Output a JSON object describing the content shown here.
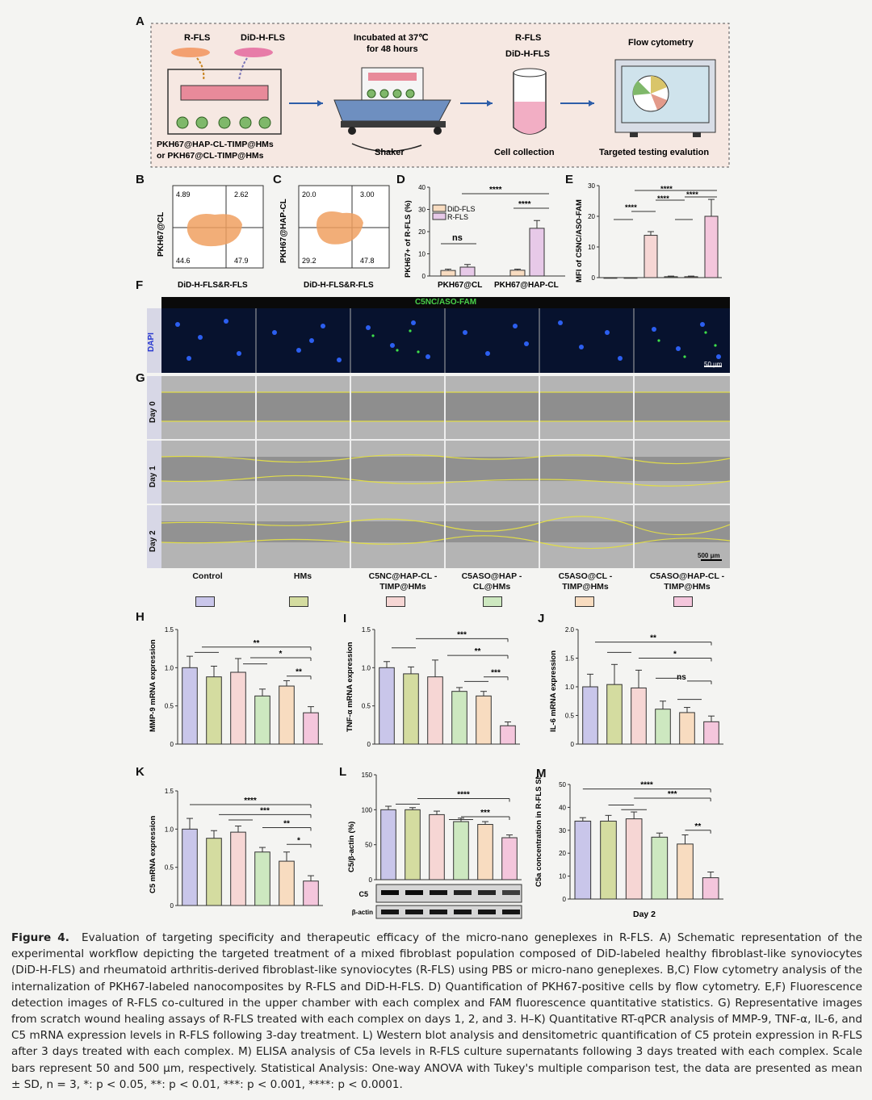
{
  "panels": {
    "A": "A",
    "B": "B",
    "C": "C",
    "D": "D",
    "E": "E",
    "F": "F",
    "G": "G",
    "H": "H",
    "I": "I",
    "J": "J",
    "K": "K",
    "L": "L",
    "M": "M"
  },
  "schematic": {
    "rfls": "R-FLS",
    "did": "DiD-H-FLS",
    "step2": [
      "Incubated at 37℃",
      "for 48 hours"
    ],
    "rfls2": "R-FLS",
    "did2": "DiD-H-FLS",
    "flow": "Flow cytometry",
    "formulation": [
      "PKH67@HAP-CL-TIMP@HMs",
      "or PKH67@CL-TIMP@HMs"
    ],
    "shaker": "Shaker",
    "cell_collection": "Cell collection",
    "targeted": "Targeted testing evalution"
  },
  "flow_plots": [
    {
      "ylabel": "PKH67@CL",
      "xlabel": "DiD-H-FLS&R-FLS",
      "q": [
        "4.89",
        "2.62",
        "44.6",
        "47.9"
      ]
    },
    {
      "ylabel": "PKH67@HAP-CL",
      "xlabel": "DiD-H-FLS&R-FLS",
      "q": [
        "20.0",
        "3.00",
        "29.2",
        "47.8"
      ]
    }
  ],
  "microscopy": {
    "fam": "C5NC/ASO-FAM",
    "dapi": "DAPI",
    "scale1": "50 μm",
    "days": [
      "Day 0",
      "Day 1",
      "Day 2"
    ],
    "scale2": "500 μm"
  },
  "groups": [
    "Control",
    "HMs",
    "C5NC@HAP-CL -TIMP@HMs",
    "C5ASO@HAP -CL@HMs",
    "C5ASO@CL -TIMP@HMs",
    "C5ASO@HAP-CL -TIMP@HMs"
  ],
  "group_colors": [
    "#c9c6ea",
    "#d4dca0",
    "#f6d6d4",
    "#cde8c0",
    "#f8dcc0",
    "#f4c6dc"
  ],
  "western": {
    "c5": "C5",
    "actin": "β-actin"
  },
  "chart_data": [
    {
      "id": "D",
      "type": "bar",
      "ylabel": "PKH67+ of R-FLS (%)",
      "categories": [
        "PKH67@CL",
        "PKH67@HAP-CL"
      ],
      "ylim": [
        0,
        40
      ],
      "yticks": [
        "0",
        "10",
        "20",
        "30",
        "40"
      ],
      "series": [
        {
          "name": "DiD-FLS",
          "color": "#f8dcc0",
          "values": [
            2.5,
            2.6
          ]
        },
        {
          "name": "R-FLS",
          "color": "#e7c9e8",
          "values": [
            4.0,
            21.5
          ]
        }
      ],
      "errors": [
        [
          0.6,
          0.5
        ],
        [
          1.2,
          3.5
        ]
      ],
      "annotations": [
        "ns",
        "****",
        "****"
      ]
    },
    {
      "id": "E",
      "type": "bar",
      "ylabel": "MFI of C5NC/ASO-FAM",
      "ylim": [
        0,
        30
      ],
      "yticks": [
        "0",
        "10",
        "20",
        "30"
      ],
      "values": [
        0,
        0,
        13.8,
        0.3,
        0.3,
        20
      ],
      "errors": [
        0,
        0,
        1.2,
        0.2,
        0.2,
        5.5
      ],
      "annotations": [
        "****",
        "****",
        "****",
        "****"
      ]
    },
    {
      "id": "H",
      "type": "bar",
      "ylabel": "MMP-9 mRNA expression",
      "ylim": [
        0,
        1.5
      ],
      "yticks": [
        "0",
        "0.5",
        "1.0",
        "1.5"
      ],
      "values": [
        1.0,
        0.88,
        0.94,
        0.63,
        0.76,
        0.41
      ],
      "errors": [
        0.15,
        0.14,
        0.18,
        0.09,
        0.07,
        0.08
      ],
      "annotations": [
        "**",
        "*",
        "**"
      ]
    },
    {
      "id": "I",
      "type": "bar",
      "ylabel": "TNF-α mRNA expression",
      "ylim": [
        0,
        1.5
      ],
      "yticks": [
        "0",
        "0.5",
        "1.0",
        "1.5"
      ],
      "values": [
        1.0,
        0.92,
        0.88,
        0.69,
        0.63,
        0.24
      ],
      "errors": [
        0.08,
        0.09,
        0.22,
        0.05,
        0.06,
        0.05
      ],
      "annotations": [
        "***",
        "**",
        "***"
      ]
    },
    {
      "id": "J",
      "type": "bar",
      "ylabel": "IL-6 mRNA expression",
      "ylim": [
        0,
        2.0
      ],
      "yticks": [
        "0",
        "0.5",
        "1.0",
        "1.5",
        "2.0"
      ],
      "values": [
        1.0,
        1.04,
        0.98,
        0.61,
        0.55,
        0.39
      ],
      "errors": [
        0.22,
        0.35,
        0.31,
        0.14,
        0.09,
        0.1
      ],
      "annotations": [
        "**",
        "*",
        "ns"
      ]
    },
    {
      "id": "K",
      "type": "bar",
      "ylabel": "C5 mRNA expression",
      "ylim": [
        0,
        1.5
      ],
      "yticks": [
        "0",
        "0.5",
        "1.0",
        "1.5"
      ],
      "values": [
        1.0,
        0.88,
        0.96,
        0.7,
        0.58,
        0.32
      ],
      "errors": [
        0.14,
        0.1,
        0.08,
        0.06,
        0.12,
        0.07
      ],
      "annotations": [
        "****",
        "***",
        "**",
        "*"
      ]
    },
    {
      "id": "L",
      "type": "bar",
      "ylabel": "C5/β-actin (%)",
      "ylim": [
        0,
        150
      ],
      "yticks": [
        "0",
        "50",
        "100",
        "150"
      ],
      "values": [
        100,
        100,
        93,
        83,
        79,
        60
      ],
      "errors": [
        5,
        3,
        5,
        5,
        4,
        4
      ],
      "annotations": [
        "****",
        "***"
      ]
    },
    {
      "id": "M",
      "type": "bar",
      "ylabel": "C5a concentration in R-FLS SN (pg/mL)",
      "xlabel": "Day 2",
      "ylim": [
        0,
        50
      ],
      "yticks": [
        "0",
        "10",
        "20",
        "30",
        "40",
        "50"
      ],
      "values": [
        34,
        34,
        35,
        27,
        24,
        9.3
      ],
      "errors": [
        1.5,
        2.5,
        3,
        1.8,
        4,
        2.5
      ],
      "annotations": [
        "****",
        "***",
        "**"
      ]
    }
  ],
  "caption": {
    "label": "Figure 4.",
    "text": "Evaluation of targeting specificity and therapeutic efficacy of the micro-nano geneplexes in R-FLS. A) Schematic representation of the experimental workflow depicting the targeted treatment of a mixed fibroblast population composed of DiD-labeled healthy fibroblast-like synoviocytes (DiD-H-FLS) and rheumatoid arthritis-derived fibroblast-like synoviocytes (R-FLS) using PBS or micro-nano geneplexes. B,C) Flow cytometry analysis of the internalization of PKH67-labeled nanocomposites by R-FLS and DiD-H-FLS. D) Quantification of PKH67-positive cells by flow cytometry. E,F) Fluorescence detection images of R-FLS co-cultured in the upper chamber with each complex and FAM fluorescence quantitative statistics. G) Representative images from scratch wound healing assays of R-FLS treated with each complex on days 1, 2, and 3. H–K) Quantitative RT-qPCR analysis of MMP-9, TNF-α, IL-6, and C5 mRNA expression levels in R-FLS following 3-day treatment. L) Western blot analysis and densitometric quantification of C5 protein expression in R-FLS after 3 days treated with each complex. M) ELISA analysis of C5a levels in R-FLS culture supernatants following 3 days treated with each complex. Scale bars represent 50 and 500 μm, respectively. Statistical Analysis: One-way ANOVA with Tukey's multiple comparison test, the data are presented as mean ± SD, n = 3, *: p < 0.05, **: p < 0.01, ***: p < 0.001, ****: p < 0.0001."
  }
}
